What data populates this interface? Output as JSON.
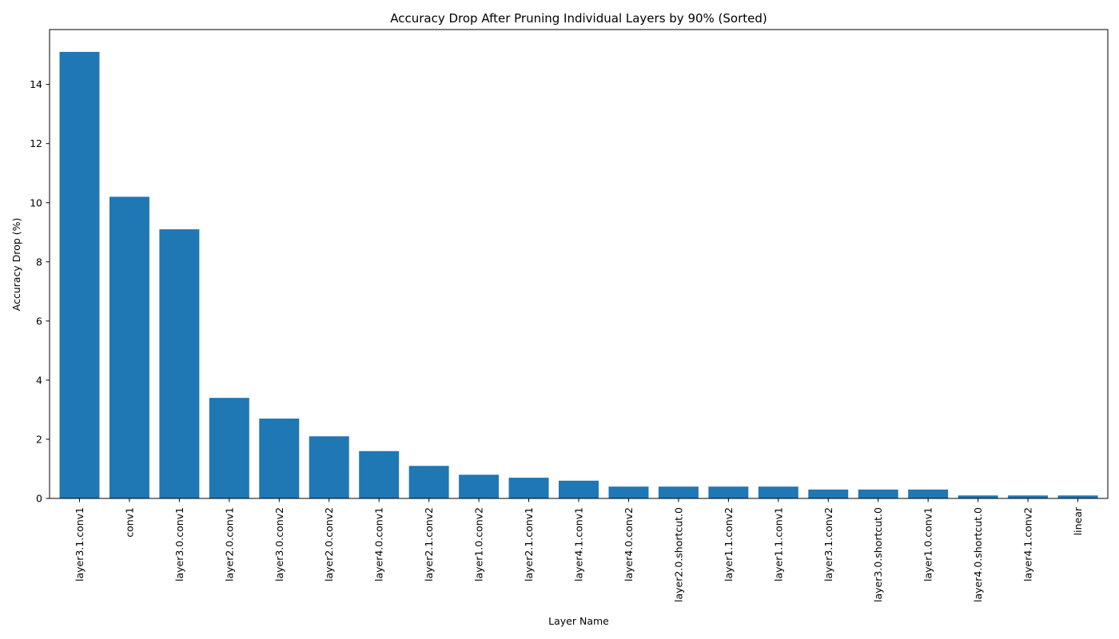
{
  "chart_data": {
    "type": "bar",
    "title": "Accuracy Drop After Pruning Individual Layers by 90% (Sorted)",
    "xlabel": "Layer Name",
    "ylabel": "Accuracy Drop (%)",
    "categories": [
      "layer3.1.conv1",
      "conv1",
      "layer3.0.conv1",
      "layer2.0.conv1",
      "layer3.0.conv2",
      "layer2.0.conv2",
      "layer4.0.conv1",
      "layer2.1.conv2",
      "layer1.0.conv2",
      "layer2.1.conv1",
      "layer4.1.conv1",
      "layer4.0.conv2",
      "layer2.0.shortcut.0",
      "layer1.1.conv2",
      "layer1.1.conv1",
      "layer3.1.conv2",
      "layer3.0.shortcut.0",
      "layer1.0.conv1",
      "layer4.0.shortcut.0",
      "layer4.1.conv2",
      "linear"
    ],
    "values": [
      15.1,
      10.2,
      9.1,
      3.4,
      2.7,
      2.1,
      1.6,
      1.1,
      0.8,
      0.7,
      0.6,
      0.4,
      0.4,
      0.4,
      0.4,
      0.3,
      0.3,
      0.3,
      0.1,
      0.1,
      0.1
    ],
    "ylim": [
      0,
      15.855
    ],
    "yticks": [
      0,
      2,
      4,
      6,
      8,
      10,
      12,
      14
    ],
    "bar_color": "#1f77b4",
    "grid": false,
    "legend": "none"
  }
}
